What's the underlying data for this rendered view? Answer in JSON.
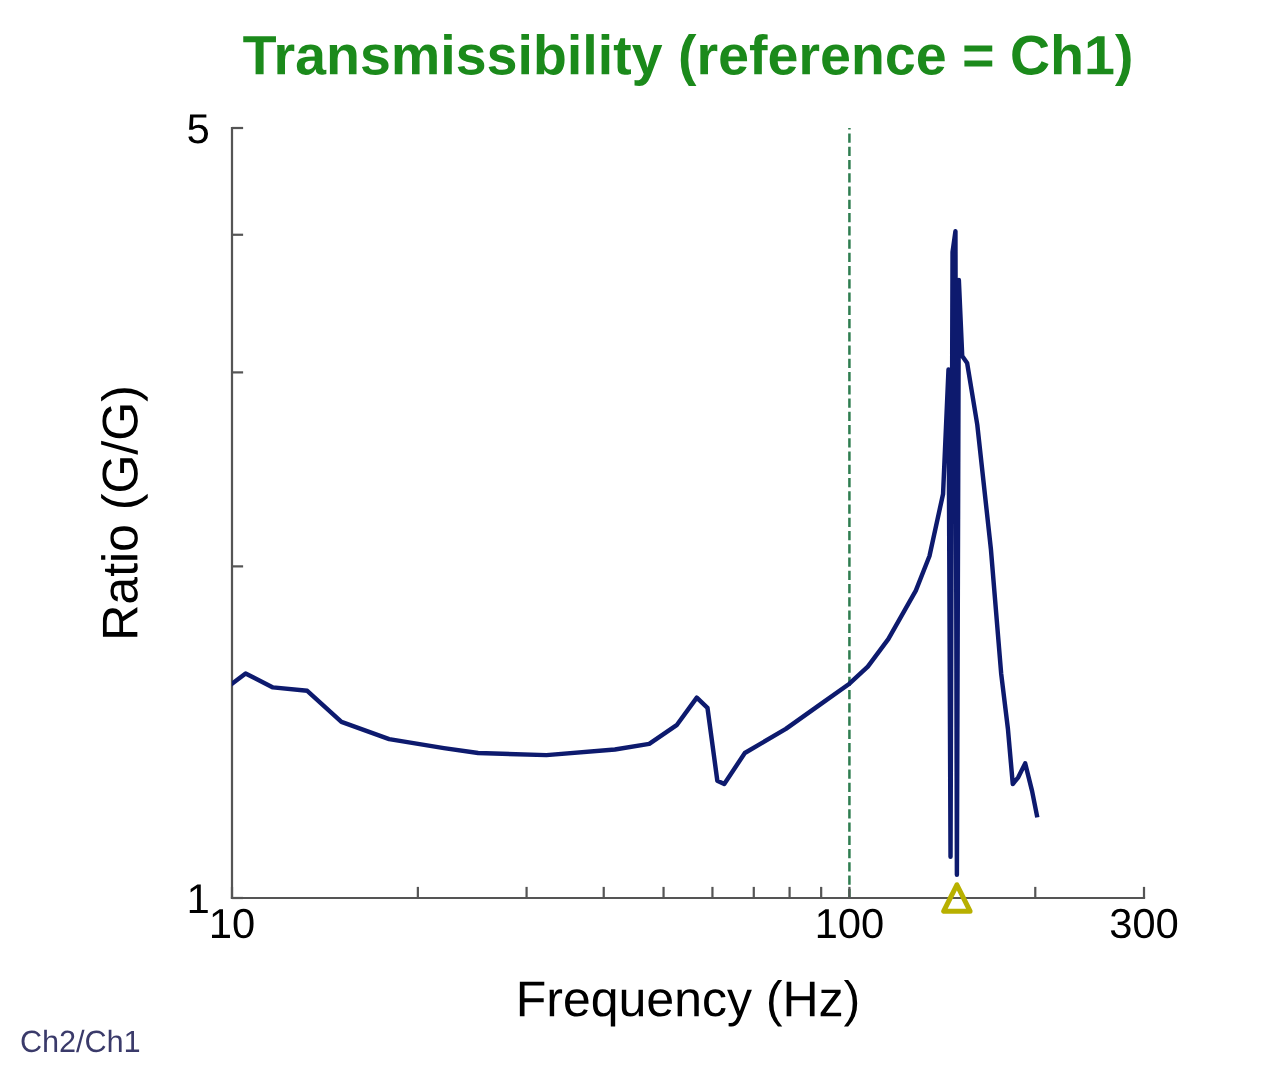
{
  "chart_data": {
    "type": "line",
    "title": "Transmissibility (reference = Ch1)",
    "xlabel": "Frequency (Hz)",
    "ylabel": "Ratio (G/G)",
    "log": "xy",
    "grid": false,
    "legend": false,
    "xlim": [
      10,
      300
    ],
    "xticks": [
      10,
      {
        "value": 20,
        "label": null
      },
      {
        "value": 30,
        "label": null
      },
      {
        "value": 40,
        "label": null
      },
      {
        "value": 50,
        "label": null
      },
      {
        "value": 60,
        "label": null
      },
      {
        "value": 70,
        "label": null
      },
      {
        "value": 80,
        "label": null
      },
      {
        "value": 90,
        "label": null
      },
      100,
      {
        "value": 200,
        "label": null
      },
      300
    ],
    "ylim": [
      1,
      5
    ],
    "yticks": [
      1,
      {
        "value": 2,
        "label": null
      },
      {
        "value": 3,
        "label": null
      },
      {
        "value": 4,
        "label": null
      },
      5
    ],
    "series": [
      {
        "color": "#0d1a6e",
        "line_style": "solid",
        "marker": "none",
        "x": [
          10,
          10.52,
          11.65,
          13.24,
          15.04,
          17.97,
          22.04,
          25.04,
          32.3,
          41.7,
          47.4,
          52.5,
          56.6,
          58.9,
          61.1,
          62.7,
          67.7,
          78.9,
          89.6,
          100,
          107.1,
          115.6,
          128.1,
          134.8,
          141.8,
          144.7,
          145.8,
          146.9,
          148.5,
          149.3,
          150.4,
          152.3,
          155.1,
          161.1,
          169.5,
          176.1,
          180.6,
          183.9,
          187.7,
          192.6,
          197.6,
          201.2
        ],
        "values": [
          1.565,
          1.599,
          1.553,
          1.542,
          1.445,
          1.394,
          1.368,
          1.354,
          1.348,
          1.364,
          1.38,
          1.435,
          1.52,
          1.488,
          1.278,
          1.269,
          1.354,
          1.424,
          1.498,
          1.565,
          1.622,
          1.718,
          1.901,
          2.044,
          2.327,
          3.018,
          1.09,
          3.857,
          4.03,
          1.05,
          3.64,
          3.105,
          3.06,
          2.689,
          2.073,
          1.599,
          1.424,
          1.269,
          1.287,
          1.325,
          1.251,
          1.189
        ]
      },
      {
        "type": "scatter",
        "color": "#b8b000",
        "marker": "triangle",
        "x": [
          149.3
        ],
        "values": [
          1
        ]
      }
    ],
    "ref_lines": [
      {
        "axis": "x",
        "value": 100,
        "color": "#2e7d4f",
        "line_style": "dashed"
      }
    ],
    "annotations": [
      "Ch2/Ch1"
    ]
  }
}
